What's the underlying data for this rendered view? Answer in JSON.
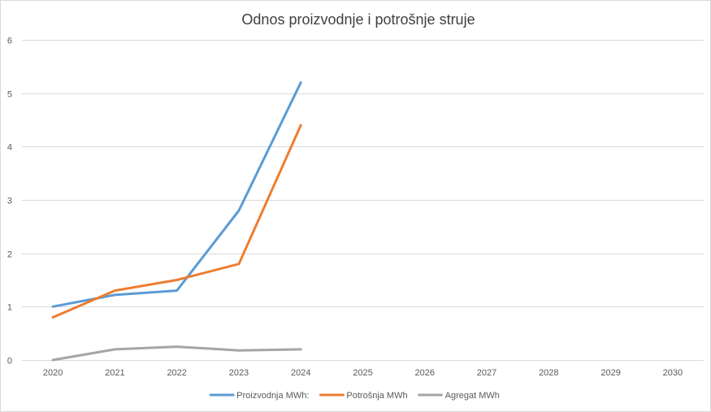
{
  "chart_data": {
    "type": "line",
    "title": "Odnos proizvodnje i potrošnje struje",
    "xlabel": "",
    "ylabel": "",
    "categories": [
      "2020",
      "2021",
      "2022",
      "2023",
      "2024",
      "2025",
      "2026",
      "2027",
      "2028",
      "2029",
      "2030"
    ],
    "ylim": [
      0,
      6
    ],
    "yticks": [
      0,
      1,
      2,
      3,
      4,
      5,
      6
    ],
    "grid": true,
    "legend_position": "bottom",
    "series": [
      {
        "name": "Proizvodnja MWh:",
        "color": "#5b9bd5",
        "values": [
          1.0,
          1.22,
          1.3,
          2.8,
          5.2,
          null,
          null,
          null,
          null,
          null,
          null
        ]
      },
      {
        "name": "Potrošnja MWh",
        "color": "#ed7d31",
        "values": [
          0.8,
          1.3,
          1.5,
          1.8,
          4.4,
          null,
          null,
          null,
          null,
          null,
          null
        ]
      },
      {
        "name": "Agregat MWh",
        "color": "#a5a5a5",
        "values": [
          0.0,
          0.2,
          0.25,
          0.18,
          0.2,
          null,
          null,
          null,
          null,
          null,
          null
        ]
      }
    ]
  }
}
